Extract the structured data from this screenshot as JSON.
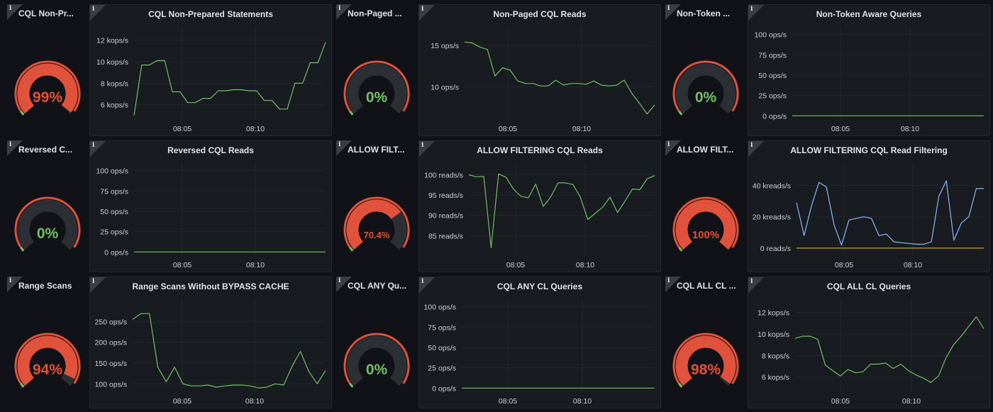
{
  "colors": {
    "background": "#111217",
    "panel": "#181b1f",
    "green": "#73bf69",
    "red": "#e0523b",
    "blue": "#8ab8ff",
    "yellow": "#c5a13a",
    "gauge_track": "#2c2f34"
  },
  "gauges": [
    {
      "title": "CQL Non-Pr...",
      "value": 99,
      "display": "99%"
    },
    {
      "title": "Non-Paged ...",
      "value": 0,
      "display": "0%"
    },
    {
      "title": "Non-Token ...",
      "value": 0,
      "display": "0%"
    },
    {
      "title": "Reversed C...",
      "value": 0,
      "display": "0%"
    },
    {
      "title": "ALLOW FILT...",
      "value": 70.4,
      "display": "70.4%"
    },
    {
      "title": "ALLOW FILT...",
      "value": 100,
      "display": "100%"
    },
    {
      "title": "Range Scans",
      "value": 94,
      "display": "94%"
    },
    {
      "title": "CQL ANY Qu...",
      "value": 0,
      "display": "0%"
    },
    {
      "title": "CQL ALL CL ...",
      "value": 98,
      "display": "98%"
    }
  ],
  "chart_data": [
    {
      "type": "line",
      "title": "CQL Non-Prepared Statements",
      "x_ticks": [
        "08:05",
        "08:10"
      ],
      "y_ticks": [
        "6 kops/s",
        "8 kops/s",
        "10 kops/s",
        "12 kops/s"
      ],
      "y_tick_values": [
        6,
        8,
        10,
        12
      ],
      "ylim": [
        4.6,
        12.9
      ],
      "series": [
        {
          "color": "green",
          "values": [
            5.0,
            9.7,
            9.7,
            10.1,
            10.1,
            7.2,
            7.2,
            6.2,
            6.2,
            6.6,
            6.6,
            7.3,
            7.3,
            7.4,
            7.4,
            7.3,
            7.3,
            6.4,
            6.4,
            5.6,
            5.6,
            8.0,
            8.0,
            9.9,
            9.9,
            11.8
          ]
        }
      ]
    },
    {
      "type": "line",
      "title": "Non-Paged CQL Reads",
      "x_ticks": [
        "08:05",
        "08:10"
      ],
      "y_ticks": [
        "10 ops/s",
        "15 ops/s"
      ],
      "y_tick_values": [
        10,
        15
      ],
      "ylim": [
        6.0,
        16.8
      ],
      "series": [
        {
          "color": "green",
          "values": [
            15.4,
            15.3,
            14.8,
            14.5,
            11.3,
            12.3,
            12.0,
            10.7,
            10.4,
            10.4,
            10.1,
            10.1,
            10.8,
            10.2,
            10.4,
            10.4,
            10.3,
            10.7,
            10.2,
            10.1,
            10.2,
            10.8,
            9.2,
            8.0,
            6.7,
            7.8
          ]
        }
      ]
    },
    {
      "type": "line",
      "title": "Non-Token Aware Queries",
      "x_ticks": [
        "08:05",
        "08:10"
      ],
      "y_ticks": [
        "0 ops/s",
        "25 ops/s",
        "50 ops/s",
        "75 ops/s",
        "100 ops/s"
      ],
      "y_tick_values": [
        0,
        25,
        50,
        75,
        100
      ],
      "ylim": [
        -5,
        105
      ],
      "series": [
        {
          "color": "green",
          "values": [
            0,
            0
          ]
        }
      ]
    },
    {
      "type": "line",
      "title": "Reversed CQL Reads",
      "x_ticks": [
        "08:05",
        "08:10"
      ],
      "y_ticks": [
        "0 ops/s",
        "25 ops/s",
        "50 ops/s",
        "75 ops/s",
        "100 ops/s"
      ],
      "y_tick_values": [
        0,
        25,
        50,
        75,
        100
      ],
      "ylim": [
        -5,
        105
      ],
      "series": [
        {
          "color": "green",
          "values": [
            0,
            0
          ]
        }
      ]
    },
    {
      "type": "line",
      "title": "ALLOW FILTERING CQL Reads",
      "x_ticks": [
        "08:05",
        "08:10"
      ],
      "y_ticks": [
        "85 reads/s",
        "90 reads/s",
        "95 reads/s",
        "100 reads/s"
      ],
      "y_tick_values": [
        85,
        90,
        95,
        100
      ],
      "ylim": [
        80,
        102
      ],
      "series": [
        {
          "color": "green",
          "values": [
            100,
            99.5,
            99.6,
            82,
            100.2,
            99.4,
            96.5,
            94.7,
            94.3,
            97.7,
            92.2,
            94.5,
            98.0,
            98.0,
            97.6,
            94.5,
            89.0,
            90.5,
            92.0,
            94.5,
            90.7,
            93.5,
            96.5,
            96.3,
            99.0,
            99.8
          ]
        }
      ]
    },
    {
      "type": "line",
      "title": "ALLOW FILTERING CQL Read Filtering",
      "x_ticks": [
        "08:05",
        "08:10"
      ],
      "y_ticks": [
        "0 reads/s",
        "20 kreads/s",
        "40 kreads/s"
      ],
      "y_tick_values": [
        0,
        20,
        40
      ],
      "ylim": [
        -5,
        52
      ],
      "series": [
        {
          "color": "blue",
          "values": [
            29,
            8,
            27,
            42,
            39,
            15,
            2,
            18,
            19,
            20,
            19,
            8,
            9,
            4,
            3.5,
            3,
            2.5,
            2.5,
            4,
            33,
            43,
            5,
            16,
            20,
            38,
            38
          ]
        },
        {
          "color": "yellow",
          "values": [
            0,
            0
          ]
        }
      ]
    },
    {
      "type": "line",
      "title": "Range Scans Without BYPASS CACHE",
      "x_ticks": [
        "08:05",
        "08:10"
      ],
      "y_ticks": [
        "100 ops/s",
        "150 ops/s",
        "200 ops/s",
        "250 ops/s"
      ],
      "y_tick_values": [
        100,
        150,
        200,
        250
      ],
      "ylim": [
        80,
        295
      ],
      "series": [
        {
          "color": "green",
          "values": [
            255,
            269,
            269,
            140,
            105,
            140,
            100,
            95,
            95,
            97,
            92,
            95,
            97,
            97,
            95,
            90,
            92,
            100,
            97,
            142,
            178,
            130,
            100,
            132
          ]
        }
      ]
    },
    {
      "type": "line",
      "title": "CQL ANY CL Queries",
      "x_ticks": [
        "08:05",
        "08:10"
      ],
      "y_ticks": [
        "0 ops/s",
        "25 ops/s",
        "50 ops/s",
        "75 ops/s",
        "100 ops/s"
      ],
      "y_tick_values": [
        0,
        25,
        50,
        75,
        100
      ],
      "ylim": [
        -5,
        105
      ],
      "series": [
        {
          "color": "green",
          "values": [
            0,
            0
          ]
        }
      ]
    },
    {
      "type": "line",
      "title": "CQL ALL CL Queries",
      "x_ticks": [
        "08:05",
        "08:10"
      ],
      "y_ticks": [
        "6 kops/s",
        "8 kops/s",
        "10 kops/s",
        "12 kops/s"
      ],
      "y_tick_values": [
        6,
        8,
        10,
        12
      ],
      "ylim": [
        4.6,
        12.9
      ],
      "series": [
        {
          "color": "green",
          "values": [
            9.6,
            9.8,
            9.8,
            9.5,
            7.1,
            6.6,
            6.1,
            6.7,
            6.4,
            6.5,
            7.2,
            7.2,
            7.3,
            6.8,
            7.2,
            6.6,
            6.2,
            5.9,
            5.5,
            6.1,
            7.8,
            9.0,
            9.8,
            10.7,
            11.6,
            10.5
          ]
        }
      ]
    }
  ]
}
